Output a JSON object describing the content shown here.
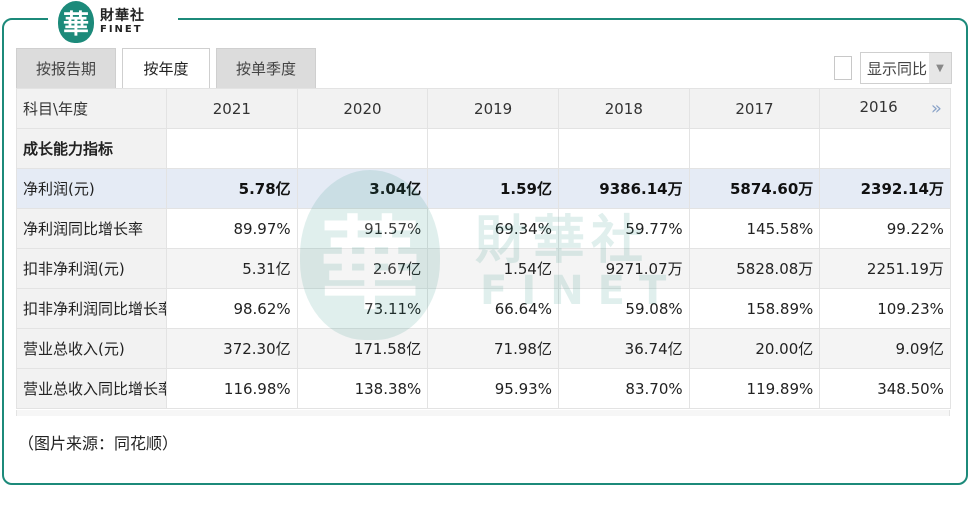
{
  "brand": {
    "logo_char": "華",
    "name_cn": "財華社",
    "name_en": "FINET",
    "accent_color": "#1c8a7a"
  },
  "tabs": [
    {
      "label": "按报告期",
      "active": false
    },
    {
      "label": "按年度",
      "active": true
    },
    {
      "label": "按单季度",
      "active": false
    }
  ],
  "yoy_toggle": {
    "checked": false,
    "select_value": "显示同比"
  },
  "table": {
    "header_label": "科目\\年度",
    "years": [
      "2021",
      "2020",
      "2019",
      "2018",
      "2017",
      "2016"
    ],
    "scroll_icon": "double-chevron-right-icon",
    "scroll_glyph": "»",
    "section_title": "成长能力指标",
    "rows": [
      {
        "label": "净利润(元)",
        "values": [
          "5.78亿",
          "3.04亿",
          "1.59亿",
          "9386.14万",
          "5874.60万",
          "2392.14万"
        ],
        "highlight": true
      },
      {
        "label": "净利润同比增长率",
        "values": [
          "89.97%",
          "91.57%",
          "69.34%",
          "59.77%",
          "145.58%",
          "99.22%"
        ]
      },
      {
        "label": "扣非净利润(元)",
        "values": [
          "5.31亿",
          "2.67亿",
          "1.54亿",
          "9271.07万",
          "5828.08万",
          "2251.19万"
        ]
      },
      {
        "label": "扣非净利润同比增长率",
        "values": [
          "98.62%",
          "73.11%",
          "66.64%",
          "59.08%",
          "158.89%",
          "109.23%"
        ]
      },
      {
        "label": "营业总收入(元)",
        "values": [
          "372.30亿",
          "171.58亿",
          "71.98亿",
          "36.74亿",
          "20.00亿",
          "9.09亿"
        ]
      },
      {
        "label": "营业总收入同比增长率",
        "values": [
          "116.98%",
          "138.38%",
          "95.93%",
          "83.70%",
          "119.89%",
          "348.50%"
        ]
      }
    ]
  },
  "source_note": "（图片来源：同花顺）",
  "watermark": {
    "char": "華",
    "cn": "財華社",
    "en": "FINET"
  }
}
